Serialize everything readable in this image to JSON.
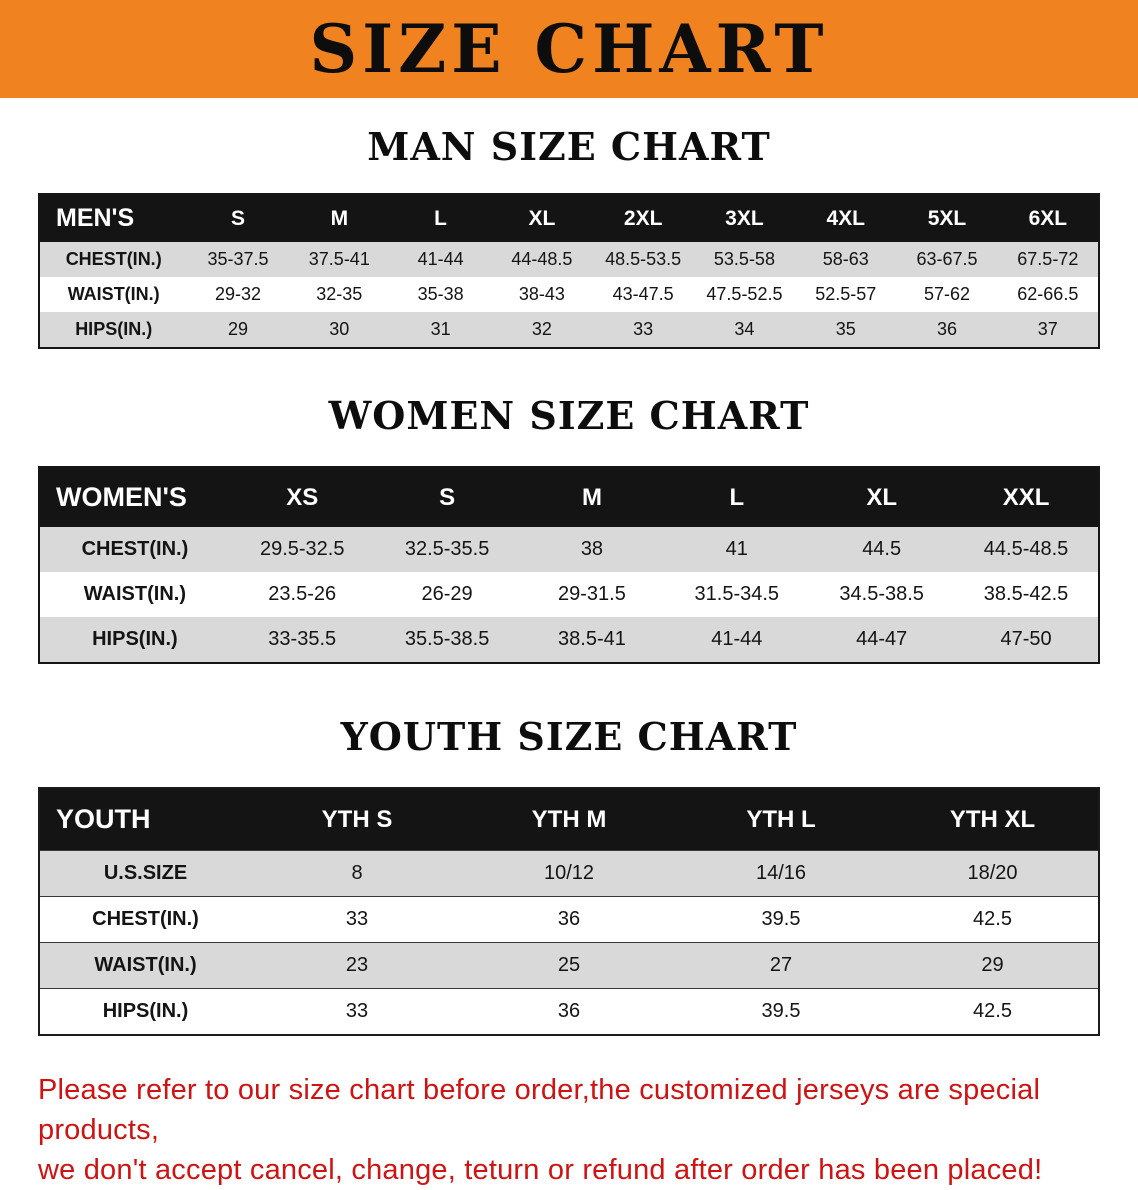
{
  "banner": {
    "title": "SIZE CHART"
  },
  "colors": {
    "banner_bg": "#f0821f",
    "table_header_bg": "#141414",
    "row_stripe": "#d9d9d9",
    "disclaimer_text": "#cf1313"
  },
  "sections": [
    {
      "id": "men",
      "heading": "MAN SIZE CHART",
      "table": {
        "header": [
          "MEN'S",
          "S",
          "M",
          "L",
          "XL",
          "2XL",
          "3XL",
          "4XL",
          "5XL",
          "6XL"
        ],
        "rows": [
          [
            "CHEST(IN.)",
            "35-37.5",
            "37.5-41",
            "41-44",
            "44-48.5",
            "48.5-53.5",
            "53.5-58",
            "58-63",
            "63-67.5",
            "67.5-72"
          ],
          [
            "WAIST(IN.)",
            "29-32",
            "32-35",
            "35-38",
            "38-43",
            "43-47.5",
            "47.5-52.5",
            "52.5-57",
            "57-62",
            "62-66.5"
          ],
          [
            "HIPS(IN.)",
            "29",
            "30",
            "31",
            "32",
            "33",
            "34",
            "35",
            "36",
            "37"
          ]
        ]
      }
    },
    {
      "id": "women",
      "heading": "WOMEN SIZE CHART",
      "table": {
        "header": [
          "WOMEN'S",
          "XS",
          "S",
          "M",
          "L",
          "XL",
          "XXL"
        ],
        "rows": [
          [
            "CHEST(IN.)",
            "29.5-32.5",
            "32.5-35.5",
            "38",
            "41",
            "44.5",
            "44.5-48.5"
          ],
          [
            "WAIST(IN.)",
            "23.5-26",
            "26-29",
            "29-31.5",
            "31.5-34.5",
            "34.5-38.5",
            "38.5-42.5"
          ],
          [
            "HIPS(IN.)",
            "33-35.5",
            "35.5-38.5",
            "38.5-41",
            "41-44",
            "44-47",
            "47-50"
          ]
        ]
      }
    },
    {
      "id": "youth",
      "heading": "YOUTH SIZE CHART",
      "table": {
        "header": [
          "YOUTH",
          "YTH S",
          "YTH M",
          "YTH L",
          "YTH XL"
        ],
        "rows": [
          [
            "U.S.SIZE",
            "8",
            "10/12",
            "14/16",
            "18/20"
          ],
          [
            "CHEST(IN.)",
            "33",
            "36",
            "39.5",
            "42.5"
          ],
          [
            "WAIST(IN.)",
            "23",
            "25",
            "27",
            "29"
          ],
          [
            "HIPS(IN.)",
            "33",
            "36",
            "39.5",
            "42.5"
          ]
        ]
      }
    }
  ],
  "disclaimer": {
    "line1": "Please refer to our size chart before order,the customized jerseys are special products,",
    "line2": "we don't accept cancel, change, teturn or refund after order has been placed!"
  }
}
